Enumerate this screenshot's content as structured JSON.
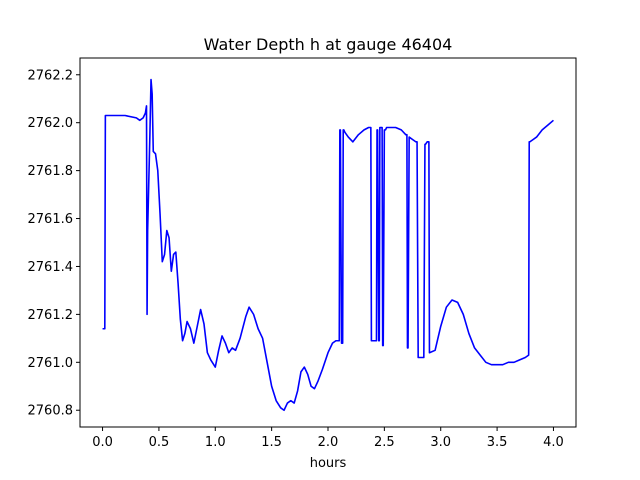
{
  "chart_data": {
    "type": "line",
    "title": "Water Depth h at gauge 46404",
    "xlabel": "hours",
    "ylabel": "",
    "xlim": [
      -0.2,
      4.2
    ],
    "ylim": [
      2760.73,
      2762.27
    ],
    "x_ticks": [
      0.0,
      0.5,
      1.0,
      1.5,
      2.0,
      2.5,
      3.0,
      3.5,
      4.0
    ],
    "x_tick_labels": [
      "0.0",
      "0.5",
      "1.0",
      "1.5",
      "2.0",
      "2.5",
      "3.0",
      "3.5",
      "4.0"
    ],
    "y_ticks": [
      2760.8,
      2761.0,
      2761.2,
      2761.4,
      2761.6,
      2761.8,
      2762.0,
      2762.2
    ],
    "y_tick_labels": [
      "2760.8",
      "2761.0",
      "2761.2",
      "2761.4",
      "2761.6",
      "2761.8",
      "2762.0",
      "2762.2"
    ],
    "grid": false,
    "legend": "none",
    "series": [
      {
        "color": "#0000ff",
        "x": [
          0.0,
          0.02,
          0.025,
          0.03,
          0.1,
          0.2,
          0.3,
          0.33,
          0.36,
          0.38,
          0.39,
          0.395,
          0.4,
          0.42,
          0.43,
          0.44,
          0.45,
          0.47,
          0.49,
          0.51,
          0.53,
          0.55,
          0.57,
          0.59,
          0.61,
          0.63,
          0.65,
          0.67,
          0.69,
          0.71,
          0.73,
          0.75,
          0.78,
          0.81,
          0.84,
          0.87,
          0.9,
          0.93,
          0.96,
          1.0,
          1.03,
          1.06,
          1.09,
          1.12,
          1.15,
          1.18,
          1.22,
          1.27,
          1.3,
          1.34,
          1.38,
          1.42,
          1.46,
          1.5,
          1.54,
          1.58,
          1.61,
          1.64,
          1.67,
          1.7,
          1.73,
          1.76,
          1.79,
          1.82,
          1.85,
          1.88,
          1.91,
          1.95,
          2.0,
          2.04,
          2.07,
          2.1,
          2.105,
          2.11,
          2.12,
          2.13,
          2.135,
          2.14,
          2.15,
          2.18,
          2.22,
          2.27,
          2.32,
          2.36,
          2.38,
          2.385,
          2.39,
          2.43,
          2.435,
          2.44,
          2.45,
          2.455,
          2.46,
          2.48,
          2.485,
          2.49,
          2.5,
          2.505,
          2.51,
          2.52,
          2.55,
          2.6,
          2.65,
          2.69,
          2.7,
          2.705,
          2.71,
          2.72,
          2.75,
          2.78,
          2.79,
          2.8,
          2.85,
          2.86,
          2.865,
          2.88,
          2.89,
          2.895,
          2.9,
          2.95,
          3.0,
          3.05,
          3.1,
          3.15,
          3.2,
          3.25,
          3.3,
          3.35,
          3.4,
          3.45,
          3.5,
          3.55,
          3.6,
          3.65,
          3.7,
          3.75,
          3.78,
          3.785,
          3.79,
          3.82,
          3.85,
          3.9,
          3.95,
          4.0
        ],
        "y": [
          2761.14,
          2761.14,
          2762.03,
          2762.03,
          2762.03,
          2762.03,
          2762.02,
          2762.01,
          2762.02,
          2762.04,
          2762.07,
          2761.2,
          2761.55,
          2761.95,
          2762.18,
          2762.12,
          2761.88,
          2761.87,
          2761.8,
          2761.62,
          2761.42,
          2761.45,
          2761.55,
          2761.52,
          2761.38,
          2761.45,
          2761.46,
          2761.33,
          2761.18,
          2761.09,
          2761.12,
          2761.17,
          2761.14,
          2761.08,
          2761.15,
          2761.22,
          2761.16,
          2761.04,
          2761.01,
          2760.98,
          2761.05,
          2761.11,
          2761.08,
          2761.04,
          2761.06,
          2761.05,
          2761.1,
          2761.19,
          2761.23,
          2761.2,
          2761.14,
          2761.1,
          2761.0,
          2760.9,
          2760.84,
          2760.81,
          2760.8,
          2760.83,
          2760.84,
          2760.83,
          2760.88,
          2760.96,
          2760.98,
          2760.95,
          2760.9,
          2760.89,
          2760.92,
          2760.97,
          2761.04,
          2761.08,
          2761.09,
          2761.09,
          2761.97,
          2761.97,
          2761.08,
          2761.08,
          2761.97,
          2761.97,
          2761.96,
          2761.94,
          2761.92,
          2761.95,
          2761.97,
          2761.98,
          2761.98,
          2761.09,
          2761.09,
          2761.09,
          2761.97,
          2761.97,
          2761.09,
          2761.09,
          2761.98,
          2761.98,
          2761.07,
          2761.07,
          2761.97,
          2761.97,
          2761.97,
          2761.98,
          2761.98,
          2761.98,
          2761.97,
          2761.95,
          2761.95,
          2761.06,
          2761.06,
          2761.94,
          2761.93,
          2761.92,
          2761.92,
          2761.02,
          2761.02,
          2761.91,
          2761.91,
          2761.92,
          2761.92,
          2761.92,
          2761.04,
          2761.05,
          2761.15,
          2761.23,
          2761.26,
          2761.25,
          2761.2,
          2761.12,
          2761.06,
          2761.03,
          2761.0,
          2760.99,
          2760.99,
          2760.99,
          2761.0,
          2761.0,
          2761.01,
          2761.02,
          2761.03,
          2761.92,
          2761.92,
          2761.93,
          2761.94,
          2761.97,
          2761.99,
          2762.01
        ]
      }
    ]
  }
}
